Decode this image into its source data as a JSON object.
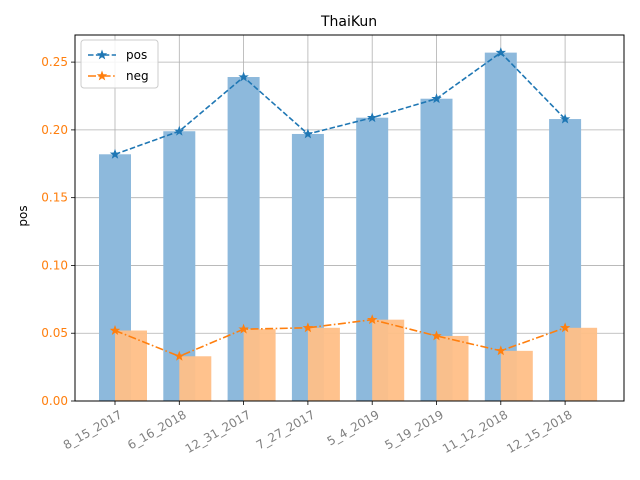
{
  "chart_data": {
    "type": "bar",
    "title": "ThaiKun",
    "xlabel": "",
    "ylabel": "pos",
    "ylim": [
      0,
      0.27
    ],
    "yticks": [
      0.0,
      0.05,
      0.1,
      0.15,
      0.2,
      0.25
    ],
    "ytick_labels": [
      "0.00",
      "0.05",
      "0.10",
      "0.15",
      "0.20",
      "0.25"
    ],
    "grid": true,
    "legend_position": "top-left",
    "categories": [
      "8_15_2017",
      "6_16_2018",
      "12_31_2017",
      "7_27_2017",
      "5_4_2019",
      "5_19_2019",
      "11_12_2018",
      "12_15_2018"
    ],
    "series": [
      {
        "name": "pos",
        "values": [
          0.182,
          0.199,
          0.239,
          0.197,
          0.209,
          0.223,
          0.257,
          0.208
        ],
        "bar_color": "#8db9dc",
        "line_color": "#1f77b4",
        "line_style": "dashed",
        "marker": "star"
      },
      {
        "name": "neg",
        "values": [
          0.052,
          0.033,
          0.053,
          0.054,
          0.06,
          0.048,
          0.037,
          0.054
        ],
        "bar_color": "#ffbf87",
        "line_color": "#ff7f0e",
        "line_style": "dashdot",
        "marker": "star"
      }
    ],
    "ytick_color": "#ff7f0e",
    "xtick_color": "#808080",
    "xtick_rotation": 30
  }
}
